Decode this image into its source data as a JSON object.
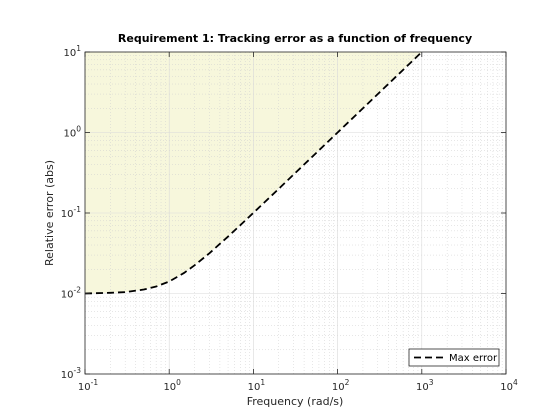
{
  "chart_data": {
    "type": "line",
    "title": "Requirement 1: Tracking error as a function of frequency",
    "xlabel": "Frequency (rad/s)",
    "ylabel": "Relative error (abs)",
    "xscale": "log",
    "yscale": "log",
    "xlim": [
      0.1,
      10000
    ],
    "ylim": [
      0.001,
      10
    ],
    "x_ticks": [
      {
        "base": "10",
        "exp": "-1",
        "value": 0.1
      },
      {
        "base": "10",
        "exp": "0",
        "value": 1
      },
      {
        "base": "10",
        "exp": "1",
        "value": 10
      },
      {
        "base": "10",
        "exp": "2",
        "value": 100
      },
      {
        "base": "10",
        "exp": "3",
        "value": 1000
      },
      {
        "base": "10",
        "exp": "4",
        "value": 10000
      }
    ],
    "y_ticks": [
      {
        "base": "10",
        "exp": "-3",
        "value": 0.001
      },
      {
        "base": "10",
        "exp": "-2",
        "value": 0.01
      },
      {
        "base": "10",
        "exp": "-1",
        "value": 0.1
      },
      {
        "base": "10",
        "exp": "0",
        "value": 1
      },
      {
        "base": "10",
        "exp": "1",
        "value": 10
      }
    ],
    "grid": true,
    "minor_grid": true,
    "legend_position": "bottom-right",
    "shaded_region": "above curve",
    "colors": {
      "shade": "#f7f7dc",
      "line": "#000000",
      "grid": "#d9d9d9",
      "axes": "#262626"
    },
    "series": [
      {
        "name": "Max error",
        "style": "dashed",
        "x": [
          0.1,
          0.2,
          0.3,
          0.5,
          0.7,
          1,
          1.5,
          2,
          3,
          5,
          7,
          10,
          20,
          50,
          100,
          200,
          500,
          1000
        ],
        "y": [
          0.01,
          0.0102,
          0.0104,
          0.0112,
          0.0122,
          0.0141,
          0.018,
          0.0224,
          0.0316,
          0.051,
          0.0707,
          0.1005,
          0.2,
          0.5,
          1.0,
          2.0,
          5.0,
          10.0
        ]
      }
    ]
  }
}
